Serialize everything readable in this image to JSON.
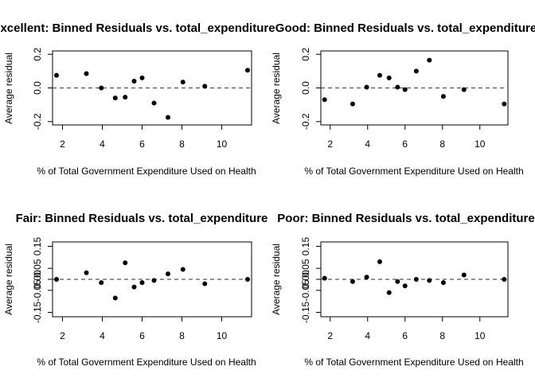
{
  "chart_data": [
    {
      "type": "scatter",
      "title": "Excellent: Binned Residuals vs. total_expenditure",
      "xlabel": "% of Total Government Expenditure Used on Health",
      "ylabel": "Average residual",
      "xlim": [
        1.5,
        11.5
      ],
      "ylim": [
        -0.22,
        0.22
      ],
      "xticks": [
        "2",
        "4",
        "6",
        "8",
        "10"
      ],
      "xtick_values": [
        2,
        4,
        6,
        8,
        10
      ],
      "yticks": [
        "-0.2",
        "0.0",
        "0.2"
      ],
      "ytick_values": [
        -0.2,
        0.0,
        0.2
      ],
      "reference_line": 0,
      "x": [
        1.7,
        3.2,
        3.95,
        4.65,
        5.15,
        5.6,
        6.0,
        6.6,
        7.3,
        8.05,
        9.15,
        11.3
      ],
      "y": [
        0.075,
        0.085,
        0.0,
        -0.06,
        -0.055,
        0.04,
        0.06,
        -0.09,
        -0.175,
        0.035,
        0.01,
        0.105
      ]
    },
    {
      "type": "scatter",
      "title": "Good: Binned Residuals vs. total_expenditure",
      "xlabel": "% of Total Government Expenditure Used on Health",
      "ylabel": "Average residual",
      "xlim": [
        1.5,
        11.5
      ],
      "ylim": [
        -0.22,
        0.22
      ],
      "xticks": [
        "2",
        "4",
        "6",
        "8",
        "10"
      ],
      "xtick_values": [
        2,
        4,
        6,
        8,
        10
      ],
      "yticks": [
        "-0.2",
        "0.0",
        "0.2"
      ],
      "yticks_values_note": "",
      "ytick_values": [
        -0.2,
        0.0,
        0.2
      ],
      "reference_line": 0,
      "x": [
        1.7,
        3.2,
        3.95,
        4.65,
        5.15,
        5.6,
        6.0,
        6.6,
        7.3,
        8.05,
        9.15,
        11.3
      ],
      "y": [
        -0.07,
        -0.095,
        0.005,
        0.075,
        0.06,
        0.005,
        -0.01,
        0.1,
        0.165,
        -0.05,
        -0.01,
        -0.095
      ]
    },
    {
      "type": "scatter",
      "title": "Fair: Binned Residuals vs. total_expenditure",
      "xlabel": "% of Total Government Expenditure Used on Health",
      "ylabel": "Average residual",
      "xlim": [
        1.5,
        11.5
      ],
      "ylim": [
        -0.17,
        0.17
      ],
      "xticks": [
        "2",
        "4",
        "6",
        "8",
        "10"
      ],
      "xtick_values": [
        2,
        4,
        6,
        8,
        10
      ],
      "yticks": [
        "-0.15",
        "-0.05",
        "0.05",
        "0.15"
      ],
      "ytick_values": [
        -0.15,
        -0.05,
        0.05,
        0.15
      ],
      "extra_ytick_labels": [
        "0.00"
      ],
      "reference_line": 0,
      "x": [
        1.7,
        3.2,
        3.95,
        4.65,
        5.15,
        5.6,
        6.0,
        6.6,
        7.3,
        8.05,
        9.15,
        11.3
      ],
      "y": [
        0.0,
        0.03,
        -0.015,
        -0.085,
        0.075,
        -0.035,
        -0.015,
        -0.005,
        0.025,
        0.045,
        -0.02,
        0.0
      ]
    },
    {
      "type": "scatter",
      "title": "Poor: Binned Residuals vs. total_expenditure",
      "xlabel": "% of Total Government Expenditure Used on Health",
      "ylabel": "Average residual",
      "xlim": [
        1.5,
        11.5
      ],
      "ylim": [
        -0.17,
        0.17
      ],
      "xticks": [
        "2",
        "4",
        "6",
        "8",
        "10"
      ],
      "xtick_values": [
        2,
        4,
        6,
        8,
        10
      ],
      "yticks": [
        "-0.15",
        "-0.05",
        "0.05",
        "0.15"
      ],
      "ytick_values": [
        -0.15,
        -0.05,
        0.05,
        0.15
      ],
      "extra_ytick_labels": [
        "0.00"
      ],
      "reference_line": 0,
      "x": [
        1.7,
        3.2,
        3.95,
        4.65,
        5.15,
        5.6,
        6.0,
        6.6,
        7.3,
        8.05,
        9.15,
        11.3
      ],
      "y": [
        0.005,
        -0.01,
        0.01,
        0.08,
        -0.06,
        -0.01,
        -0.03,
        0.0,
        -0.005,
        -0.015,
        0.02,
        0.0
      ]
    }
  ]
}
